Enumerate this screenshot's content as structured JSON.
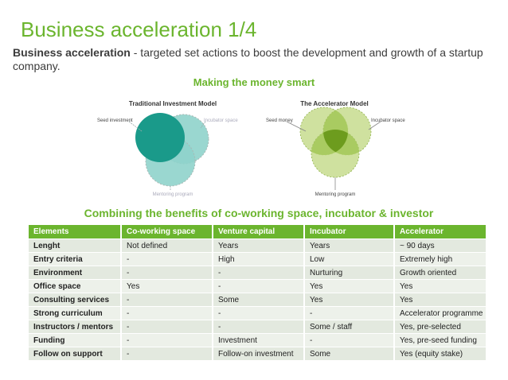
{
  "slide": {
    "title": "Business acceleration 1/4",
    "intro_bold": "Business acceleration",
    "intro_rest": " - targeted set actions to boost the development and growth of a startup company.",
    "subtitle_diagram": "Making the money smart",
    "subtitle_table": "Combining the benefits of co-working space, incubator & investor"
  },
  "diagrams": {
    "traditional": {
      "title": "Traditional Investment Model",
      "seed": "Seed investment",
      "incubator": "Incubator space",
      "mentoring": "Mentoring program"
    },
    "accelerator": {
      "title": "The Accelerator Model",
      "seed": "Seed money",
      "incubator": "Incubator space",
      "mentoring": "Mentoring program"
    }
  },
  "colors": {
    "accent": "#6bb52e",
    "teal": "#1a9a8a",
    "teal_light": "#8fd3cb",
    "lime": "#c7dc8e",
    "lime_dark": "#7aa924"
  },
  "table": {
    "headers": [
      "Elements",
      "Co-working space",
      "Venture capital",
      "Incubator",
      "Accelerator"
    ],
    "rows": [
      [
        "Lenght",
        "Not defined",
        "Years",
        "Years",
        "~ 90 days"
      ],
      [
        "Entry criteria",
        "-",
        "High",
        "Low",
        "Extremely high"
      ],
      [
        "Environment",
        "-",
        "-",
        "Nurturing",
        "Growth oriented"
      ],
      [
        "Office space",
        "Yes",
        "-",
        "Yes",
        "Yes"
      ],
      [
        "Consulting services",
        "-",
        "Some",
        "Yes",
        "Yes"
      ],
      [
        "Strong curriculum",
        "-",
        "-",
        "-",
        "Accelerator programme"
      ],
      [
        "Instructors / mentors",
        "-",
        "-",
        "Some / staff",
        "Yes, pre-selected"
      ],
      [
        "Funding",
        "-",
        "Investment",
        "-",
        "Yes, pre-seed funding"
      ],
      [
        "Follow on support",
        "-",
        "Follow-on investment",
        "Some",
        "Yes (equity stake)"
      ]
    ]
  }
}
